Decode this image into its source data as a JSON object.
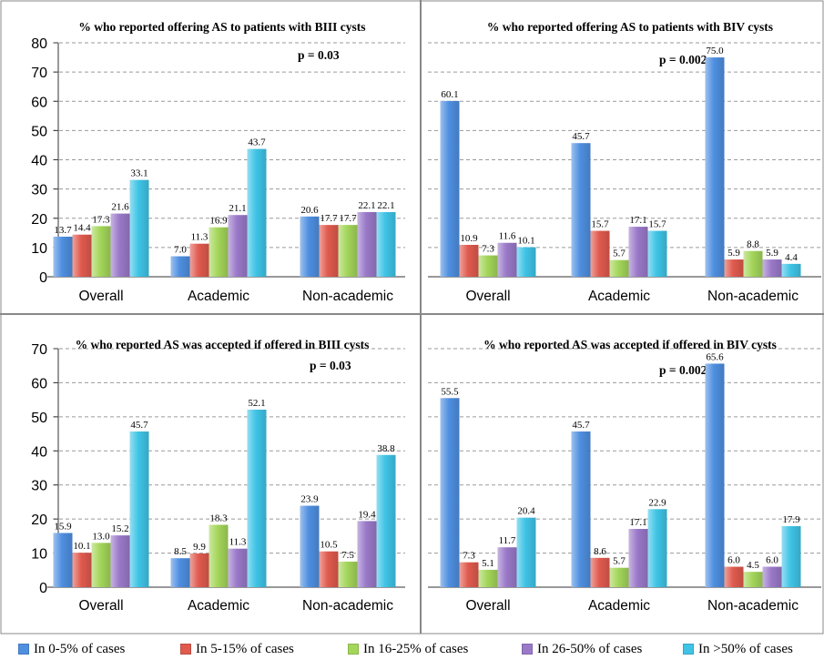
{
  "categories": [
    "Overall",
    "Academic",
    "Non-academic"
  ],
  "legend": {
    "series": [
      {
        "name": "In 0-5% of cases",
        "color": "#4f8fe0"
      },
      {
        "name": "In 5-15% of cases",
        "color": "#e05a4e"
      },
      {
        "name": "In 16-25% of cases",
        "color": "#a4d65a"
      },
      {
        "name": "In 26-50% of cases",
        "color": "#9a79c9"
      },
      {
        "name": "In >50% of cases",
        "color": "#3fc4e6"
      }
    ]
  },
  "chart_data": [
    {
      "type": "bar",
      "title": "% who reported offering AS to patients with BIII cysts",
      "annotation": "p = 0.03",
      "categories": [
        "Overall",
        "Academic",
        "Non-academic"
      ],
      "ylim": [
        0,
        80
      ],
      "yticks": [
        0,
        10,
        20,
        30,
        40,
        50,
        60,
        70,
        80
      ],
      "series": [
        {
          "name": "In 0-5% of cases",
          "values": [
            13.7,
            7.0,
            20.6
          ]
        },
        {
          "name": "In 5-15% of cases",
          "values": [
            14.4,
            11.3,
            17.7
          ]
        },
        {
          "name": "In 16-25% of cases",
          "values": [
            17.3,
            16.9,
            17.7
          ]
        },
        {
          "name": "In 26-50% of cases",
          "values": [
            21.6,
            21.1,
            22.1
          ]
        },
        {
          "name": "In >50% of cases",
          "values": [
            33.1,
            43.7,
            22.1
          ]
        }
      ],
      "labels": [
        [
          "13.7",
          "7.0",
          "20.6"
        ],
        [
          "14.4",
          "11.3",
          "17.7"
        ],
        [
          "17.3",
          "16.9",
          "17.7"
        ],
        [
          "21.6",
          "21.1",
          "22.1"
        ],
        [
          "33.1",
          "43.7",
          "22.1"
        ]
      ]
    },
    {
      "type": "bar",
      "title": "% who reported offering AS to patients with BIV cysts",
      "annotation": "p = 0.002",
      "categories": [
        "Overall",
        "Academic",
        "Non-academic"
      ],
      "ylim": [
        0,
        80
      ],
      "yticks": [],
      "series": [
        {
          "name": "In 0-5% of cases",
          "values": [
            60.1,
            45.7,
            75.0
          ]
        },
        {
          "name": "In 5-15% of cases",
          "values": [
            10.9,
            15.7,
            5.9
          ]
        },
        {
          "name": "In 16-25% of cases",
          "values": [
            7.3,
            5.7,
            8.8
          ]
        },
        {
          "name": "In 26-50% of cases",
          "values": [
            11.6,
            17.1,
            5.9
          ]
        },
        {
          "name": "In >50% of cases",
          "values": [
            10.1,
            15.7,
            4.4
          ]
        }
      ],
      "labels": [
        [
          "60.1",
          "45.7",
          "75.0"
        ],
        [
          "10.9",
          "15.7",
          "5.9"
        ],
        [
          "7.3",
          "5.7",
          "8.8"
        ],
        [
          "11.6",
          "17.1",
          "5.9"
        ],
        [
          "10.1",
          "15.7",
          "4.4"
        ]
      ]
    },
    {
      "type": "bar",
      "title": "% who reported AS was accepted if offered in BIII cysts",
      "annotation": "p = 0.03",
      "categories": [
        "Overall",
        "Academic",
        "Non-academic"
      ],
      "ylim": [
        0,
        70
      ],
      "yticks": [
        0,
        10,
        20,
        30,
        40,
        50,
        60,
        70
      ],
      "series": [
        {
          "name": "In 0-5% of cases",
          "values": [
            15.9,
            8.5,
            23.9
          ]
        },
        {
          "name": "In 5-15% of cases",
          "values": [
            10.1,
            9.9,
            10.5
          ]
        },
        {
          "name": "In 16-25% of cases",
          "values": [
            13.0,
            18.3,
            7.5
          ]
        },
        {
          "name": "In 26-50% of cases",
          "values": [
            15.2,
            11.3,
            19.4
          ]
        },
        {
          "name": "In >50% of cases",
          "values": [
            45.7,
            52.1,
            38.8
          ]
        }
      ],
      "labels": [
        [
          "15.9",
          "8.5",
          "23.9"
        ],
        [
          "10.1",
          "9.9",
          "10.5"
        ],
        [
          "13.0",
          "18.3",
          "7.5"
        ],
        [
          "15.2",
          "11.3",
          "19.4"
        ],
        [
          "45.7",
          "52.1",
          "38.8"
        ]
      ]
    },
    {
      "type": "bar",
      "title": "% who reported AS was accepted if offered in BIV cysts",
      "annotation": "p = 0.002",
      "categories": [
        "Overall",
        "Academic",
        "Non-academic"
      ],
      "ylim": [
        0,
        70
      ],
      "yticks": [],
      "series": [
        {
          "name": "In 0-5% of cases",
          "values": [
            55.5,
            45.7,
            65.6
          ]
        },
        {
          "name": "In 5-15% of cases",
          "values": [
            7.3,
            8.6,
            6.0
          ]
        },
        {
          "name": "In 16-25% of cases",
          "values": [
            5.1,
            5.7,
            4.5
          ]
        },
        {
          "name": "In 26-50% of cases",
          "values": [
            11.7,
            17.1,
            6.0
          ]
        },
        {
          "name": "In >50% of cases",
          "values": [
            20.4,
            22.9,
            17.9
          ]
        }
      ],
      "labels": [
        [
          "55.5",
          "45.7",
          "65.6"
        ],
        [
          "7.3",
          "8.6",
          "6.0"
        ],
        [
          "5.1",
          "5.7",
          "4.5"
        ],
        [
          "11.7",
          "17.1",
          "6.0"
        ],
        [
          "20.4",
          "22.9",
          "17.9"
        ]
      ]
    }
  ]
}
